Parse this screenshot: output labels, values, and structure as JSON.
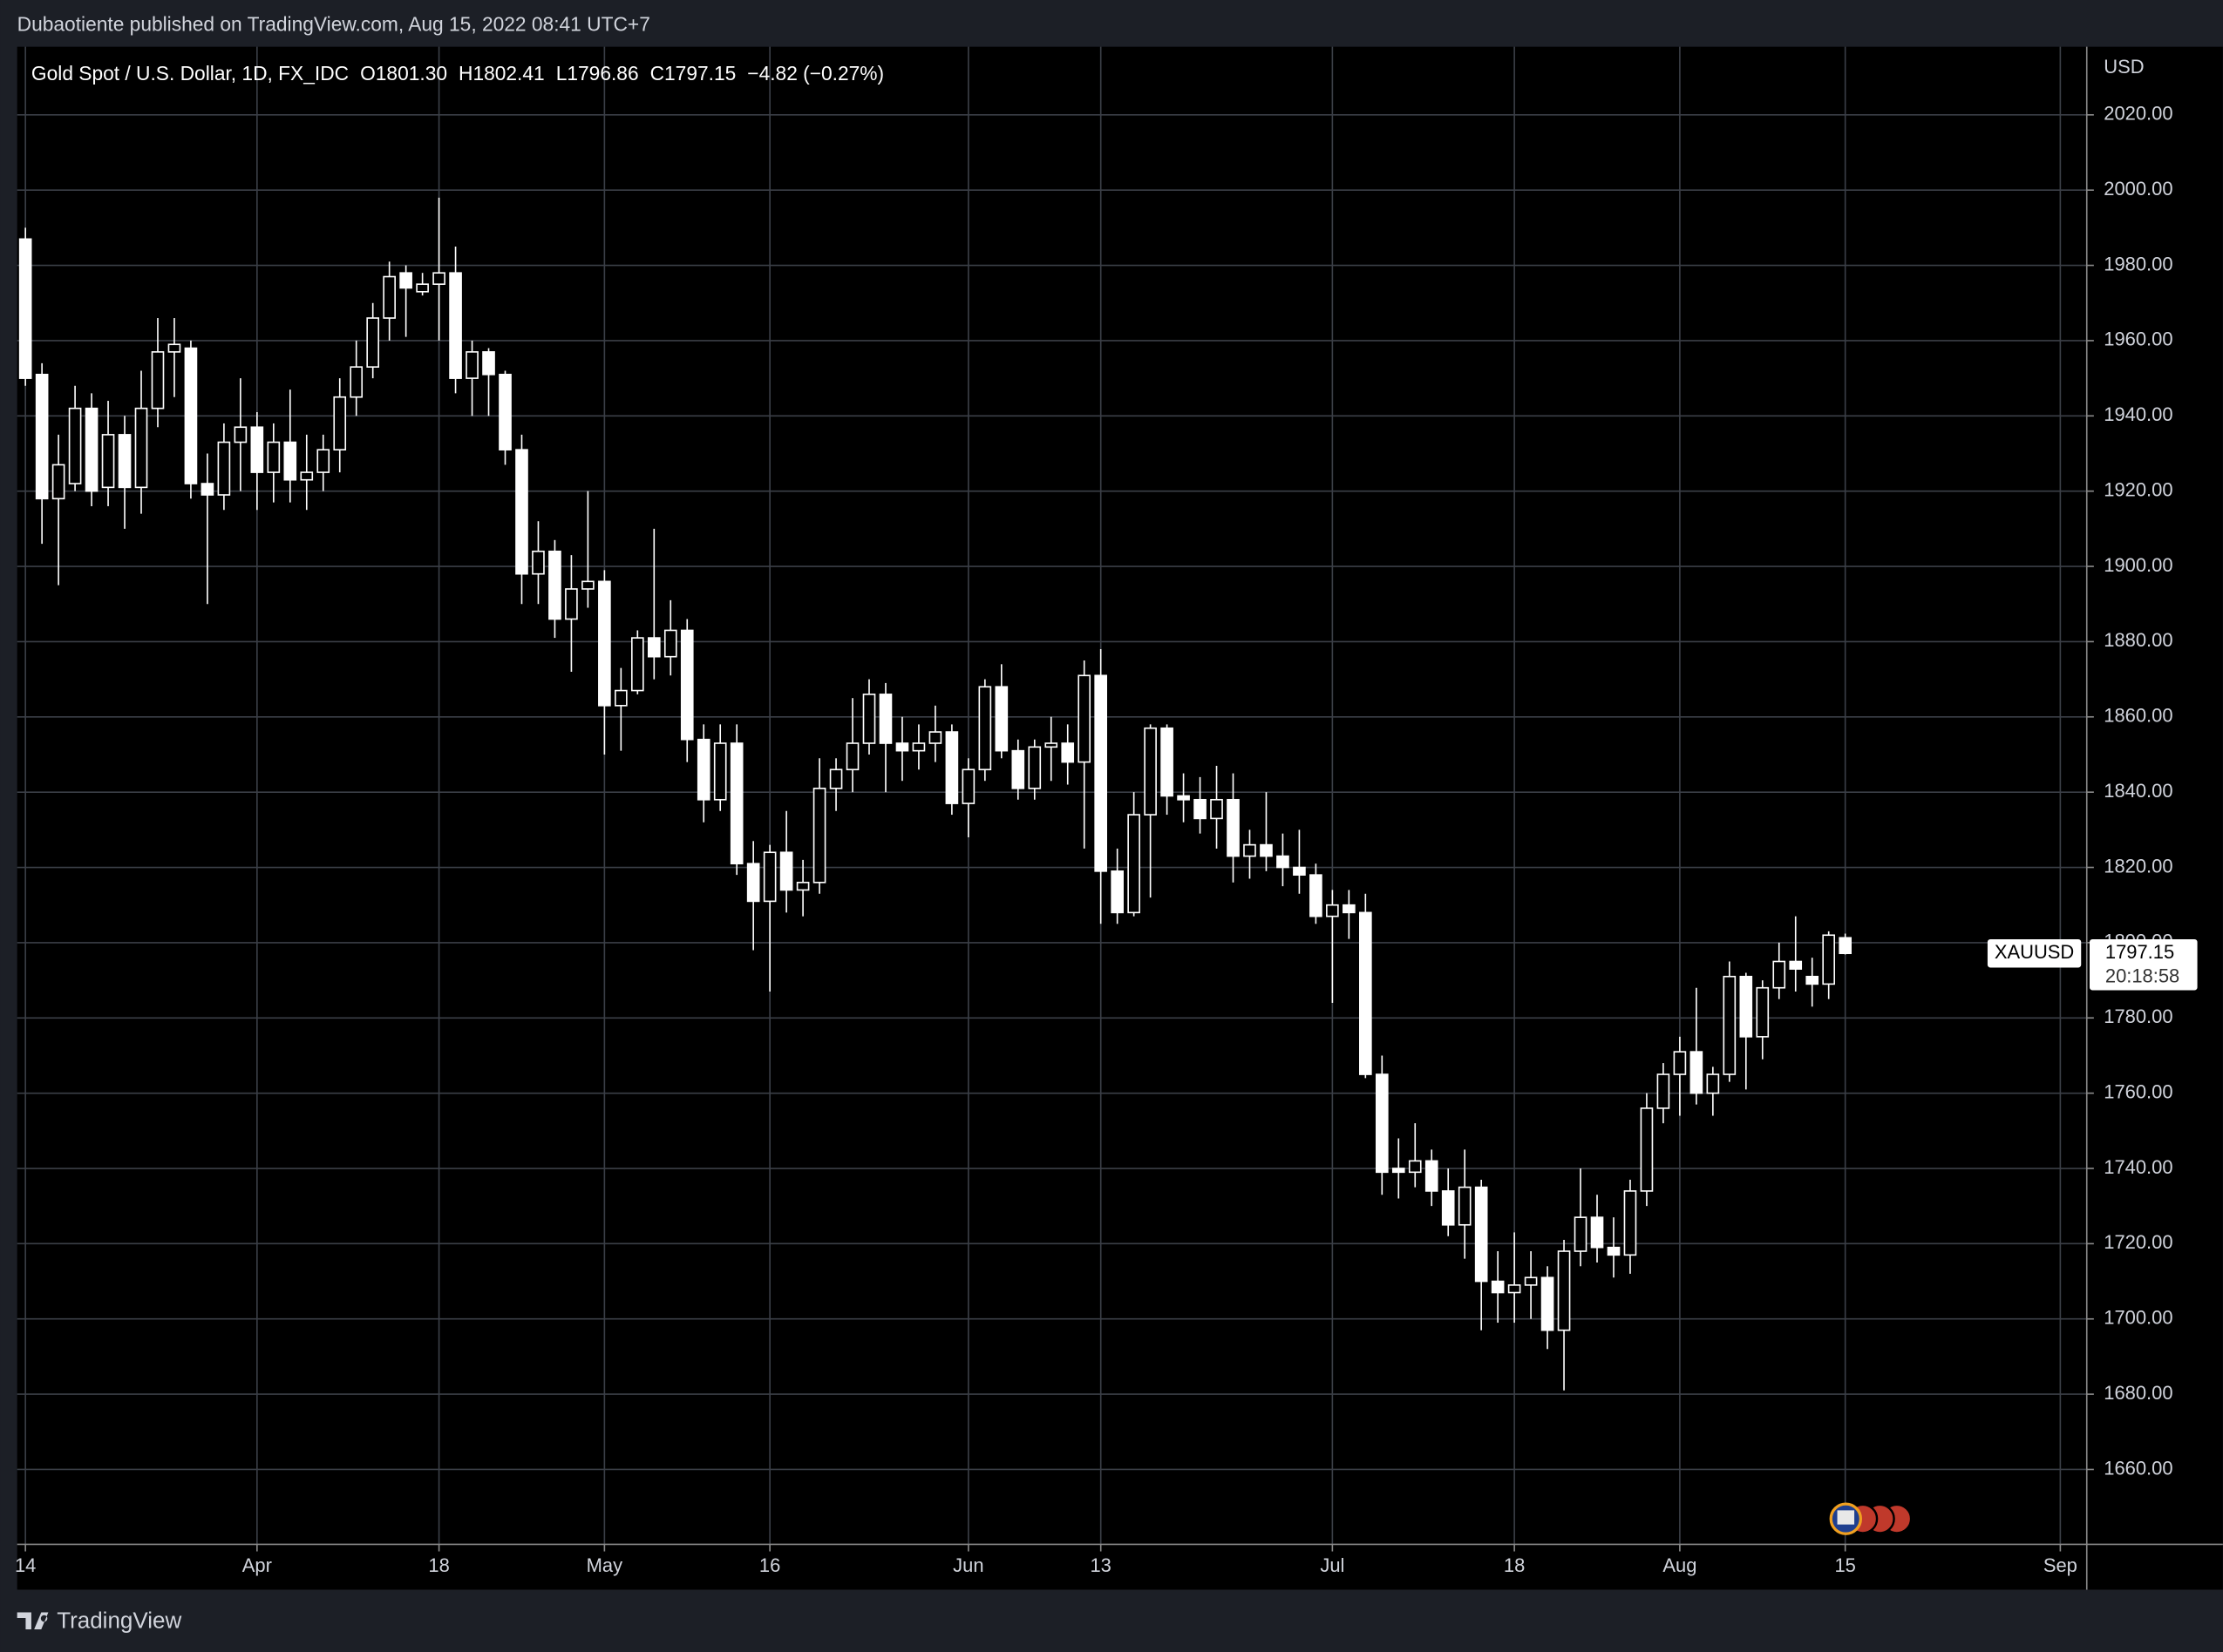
{
  "header": {
    "published": "Dubaotiente published on TradingView.com, Aug 15, 2022 08:41 UTC+7",
    "symbol": "Gold Spot / U.S. Dollar, 1D, FX_IDC",
    "ohlc": [
      "O1801.30",
      "H1802.41",
      "L1796.86",
      "C1797.15"
    ],
    "change": "−4.82 (−0.27%)"
  },
  "footer": {
    "brand": "TradingView"
  },
  "chart_data": {
    "type": "candlestick",
    "currency": "USD",
    "countdown": "20:18:58",
    "series": [
      {
        "name": "XAUUSD",
        "color": "#ffffff",
        "open": [
          1987,
          1951,
          1918,
          1922,
          1942,
          1921,
          1935,
          1921,
          1942,
          1957,
          1958,
          1922,
          1919,
          1933,
          1937,
          1925,
          1933,
          1923,
          1925,
          1931,
          1945,
          1953,
          1966,
          1978,
          1973,
          1975,
          1978,
          1950,
          1957,
          1951,
          1931,
          1898,
          1904,
          1886,
          1894,
          1896,
          1863,
          1867,
          1881,
          1876,
          1883,
          1854,
          1838,
          1853,
          1821,
          1811,
          1824,
          1814,
          1816,
          1841,
          1846,
          1853,
          1866,
          1853,
          1851,
          1853,
          1856,
          1837,
          1846,
          1868,
          1851,
          1841,
          1852,
          1853,
          1848,
          1871,
          1819,
          1808,
          1834,
          1857,
          1839,
          1838,
          1833,
          1838,
          1823,
          1826,
          1823,
          1820,
          1818,
          1807,
          1810,
          1808,
          1765,
          1740,
          1739,
          1742,
          1734,
          1725,
          1735,
          1710,
          1707,
          1709,
          1711,
          1697,
          1718,
          1727,
          1719,
          1717,
          1734,
          1756,
          1765,
          1771,
          1760,
          1765,
          1791,
          1775,
          1788,
          1795,
          1791,
          1789,
          1801.3
        ],
        "high": [
          1990,
          1954,
          1935,
          1948,
          1946,
          1944,
          1940,
          1952,
          1966,
          1966,
          1960,
          1930,
          1938,
          1950,
          1941,
          1938,
          1947,
          1935,
          1935,
          1950,
          1960,
          1970,
          1981,
          1980,
          1978,
          1998,
          1985,
          1960,
          1958,
          1952,
          1935,
          1912,
          1907,
          1903,
          1920,
          1899,
          1873,
          1883,
          1910,
          1891,
          1886,
          1858,
          1858,
          1858,
          1827,
          1826,
          1835,
          1822,
          1849,
          1849,
          1865,
          1870,
          1869,
          1860,
          1858,
          1863,
          1858,
          1849,
          1870,
          1874,
          1854,
          1854,
          1860,
          1858,
          1875,
          1878,
          1825,
          1840,
          1858,
          1858,
          1845,
          1844,
          1847,
          1845,
          1830,
          1840,
          1829,
          1830,
          1821,
          1814,
          1814,
          1813,
          1770,
          1748,
          1752,
          1745,
          1740,
          1745,
          1737,
          1718,
          1723,
          1718,
          1714,
          1721,
          1740,
          1733,
          1727,
          1737,
          1760,
          1768,
          1775,
          1788,
          1767,
          1795,
          1792,
          1790,
          1800,
          1807,
          1796,
          1803,
          1802.41
        ],
        "low": [
          1948,
          1906,
          1895,
          1920,
          1916,
          1916,
          1910,
          1914,
          1937,
          1945,
          1918,
          1890,
          1915,
          1920,
          1915,
          1917,
          1917,
          1915,
          1920,
          1925,
          1940,
          1950,
          1960,
          1961,
          1972,
          1960,
          1946,
          1940,
          1940,
          1927,
          1890,
          1890,
          1881,
          1872,
          1889,
          1850,
          1851,
          1866,
          1870,
          1871,
          1848,
          1832,
          1835,
          1818,
          1798,
          1787,
          1808,
          1807,
          1813,
          1835,
          1840,
          1850,
          1840,
          1843,
          1846,
          1848,
          1834,
          1828,
          1843,
          1849,
          1838,
          1838,
          1843,
          1842,
          1825,
          1805,
          1805,
          1807,
          1812,
          1834,
          1832,
          1829,
          1825,
          1816,
          1817,
          1819,
          1815,
          1813,
          1805,
          1784,
          1801,
          1764,
          1733,
          1732,
          1735,
          1730,
          1722,
          1716,
          1697,
          1699,
          1699,
          1700,
          1692,
          1681,
          1714,
          1715,
          1711,
          1712,
          1730,
          1752,
          1754,
          1757,
          1754,
          1763,
          1761,
          1769,
          1785,
          1787,
          1783,
          1785,
          1796.86
        ],
        "close": [
          1950,
          1918,
          1927,
          1942,
          1920,
          1935,
          1921,
          1942,
          1957,
          1959,
          1922,
          1919,
          1933,
          1937,
          1925,
          1933,
          1923,
          1925,
          1931,
          1945,
          1953,
          1966,
          1977,
          1974,
          1975,
          1978,
          1950,
          1957,
          1951,
          1931,
          1898,
          1904,
          1886,
          1894,
          1896,
          1863,
          1867,
          1881,
          1876,
          1883,
          1854,
          1838,
          1853,
          1821,
          1811,
          1824,
          1814,
          1816,
          1841,
          1846,
          1853,
          1866,
          1853,
          1851,
          1853,
          1856,
          1837,
          1846,
          1868,
          1851,
          1841,
          1852,
          1853,
          1848,
          1871,
          1819,
          1808,
          1834,
          1857,
          1839,
          1838,
          1833,
          1838,
          1823,
          1826,
          1823,
          1820,
          1818,
          1807,
          1810,
          1808,
          1765,
          1739,
          1739,
          1742,
          1734,
          1725,
          1735,
          1710,
          1707,
          1709,
          1711,
          1697,
          1718,
          1727,
          1719,
          1717,
          1734,
          1756,
          1765,
          1771,
          1760,
          1765,
          1791,
          1775,
          1788,
          1795,
          1793,
          1789,
          1802,
          1797.15
        ]
      }
    ],
    "xlim": [
      -0.5,
      124.6
    ],
    "xticks": [
      {
        "value": 0,
        "label": "14"
      },
      {
        "value": 14,
        "label": "Apr"
      },
      {
        "value": 25,
        "label": "18"
      },
      {
        "value": 35,
        "label": "May"
      },
      {
        "value": 45,
        "label": "16"
      },
      {
        "value": 57,
        "label": "Jun"
      },
      {
        "value": 65,
        "label": "13"
      },
      {
        "value": 79,
        "label": "Jul"
      },
      {
        "value": 90,
        "label": "18"
      },
      {
        "value": 100,
        "label": "Aug"
      },
      {
        "value": 110,
        "label": "15"
      },
      {
        "value": 123,
        "label": "Sep"
      }
    ],
    "ylim": [
      1640.1,
      2038.1
    ],
    "yticks": [
      {
        "value": 1660,
        "label": "1660.00"
      },
      {
        "value": 1680,
        "label": "1680.00"
      },
      {
        "value": 1700,
        "label": "1700.00"
      },
      {
        "value": 1720,
        "label": "1720.00"
      },
      {
        "value": 1740,
        "label": "1740.00"
      },
      {
        "value": 1760,
        "label": "1760.00"
      },
      {
        "value": 1780,
        "label": "1780.00"
      },
      {
        "value": 1800,
        "label": "1800.00"
      },
      {
        "value": 1820,
        "label": "1820.00"
      },
      {
        "value": 1840,
        "label": "1840.00"
      },
      {
        "value": 1860,
        "label": "1860.00"
      },
      {
        "value": 1880,
        "label": "1880.00"
      },
      {
        "value": 1900,
        "label": "1900.00"
      },
      {
        "value": 1920,
        "label": "1920.00"
      },
      {
        "value": 1940,
        "label": "1940.00"
      },
      {
        "value": 1960,
        "label": "1960.00"
      },
      {
        "value": 1980,
        "label": "1980.00"
      },
      {
        "value": 2000,
        "label": "2000.00"
      },
      {
        "value": 2020,
        "label": "2020.00"
      }
    ],
    "grid": true
  }
}
